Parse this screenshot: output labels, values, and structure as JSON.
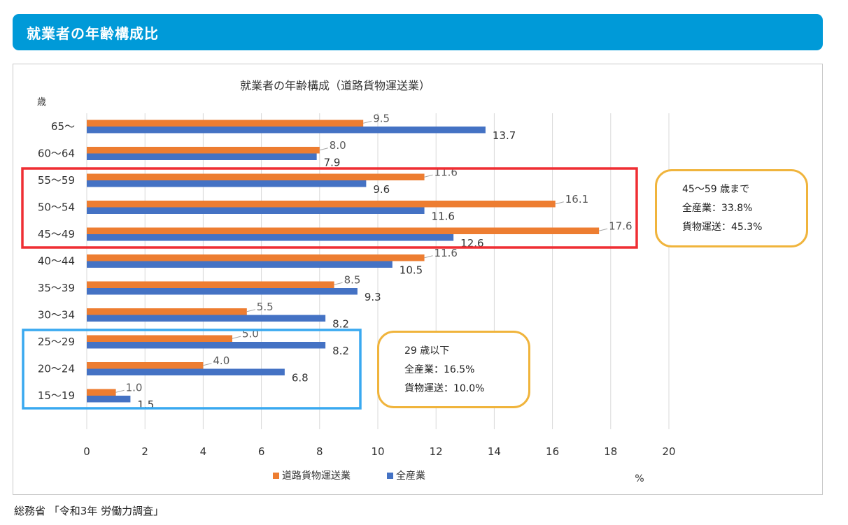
{
  "header": {
    "title": "就業者の年齢構成比"
  },
  "colors": {
    "header": "#009ad8",
    "freight": "#ed7d31",
    "all": "#4472c4",
    "red_box": "#ef2e33",
    "blue_box": "#39a9f0",
    "callout": "#f0b43c",
    "grid": "#d9d9d9"
  },
  "chart_data": {
    "type": "bar",
    "orientation": "horizontal",
    "title": "就業者の年齢構成（道路貨物運送業）",
    "ylabel": "歳",
    "xlabel": "%",
    "xlim": [
      0,
      20
    ],
    "xticks": [
      "0",
      "2",
      "4",
      "6",
      "8",
      "10",
      "12",
      "14",
      "16",
      "18",
      "20"
    ],
    "categories": [
      "65～",
      "60～64",
      "55～59",
      "50～54",
      "45～49",
      "40～44",
      "35～39",
      "30～34",
      "25～29",
      "20～24",
      "15～19"
    ],
    "series": [
      {
        "name": "道路貨物運送業",
        "values": [
          9.5,
          8.0,
          11.6,
          16.1,
          17.6,
          11.6,
          8.5,
          5.5,
          5.0,
          4.0,
          1.0
        ],
        "labels": [
          "9.5",
          "8.0",
          "11.6",
          "16.1",
          "17.6",
          "11.6",
          "8.5",
          "5.5",
          "5.0",
          "4.0",
          "1.0"
        ]
      },
      {
        "name": "全産業",
        "values": [
          13.7,
          7.9,
          9.6,
          11.6,
          12.6,
          10.5,
          9.3,
          8.2,
          8.2,
          6.8,
          1.5
        ],
        "labels": [
          "13.7",
          "7.9",
          "9.6",
          "11.6",
          "12.6",
          "10.5",
          "9.3",
          "8.2",
          "8.2",
          "6.8",
          "1.5"
        ]
      }
    ],
    "legend_position": "bottom"
  },
  "callouts": {
    "age45_59": {
      "line1": "45～59 歳まで",
      "line2": "全産業：33.8%",
      "line3": "貨物運送：45.3%"
    },
    "under29": {
      "line1": "29 歳以下",
      "line2": "全産業：16.5%",
      "line3": "貨物運送：10.0%"
    }
  },
  "source": "総務省 「令和3年 労働力調査」"
}
